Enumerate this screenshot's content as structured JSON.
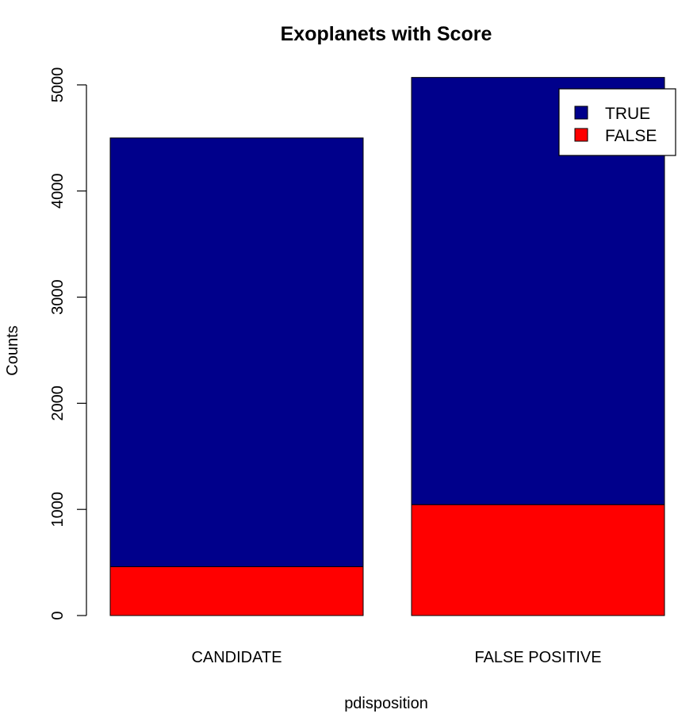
{
  "chart_data": {
    "type": "bar",
    "stacked": true,
    "title": "Exoplanets with Score",
    "xlabel": "pdisposition",
    "ylabel": "Counts",
    "categories": [
      "CANDIDATE",
      "FALSE POSITIVE"
    ],
    "series": [
      {
        "name": "FALSE",
        "values": [
          460,
          1045
        ],
        "color": "#ff0000"
      },
      {
        "name": "TRUE",
        "values": [
          4040,
          4025
        ],
        "color": "#00008b"
      }
    ],
    "totals": [
      4500,
      5070
    ],
    "ylim": [
      0,
      5000
    ],
    "yticks": [
      0,
      1000,
      2000,
      3000,
      4000,
      5000
    ],
    "legend": {
      "position": "top-right",
      "entries": [
        {
          "label": "TRUE",
          "color": "#00008b"
        },
        {
          "label": "FALSE",
          "color": "#ff0000"
        }
      ]
    },
    "grid": false
  }
}
